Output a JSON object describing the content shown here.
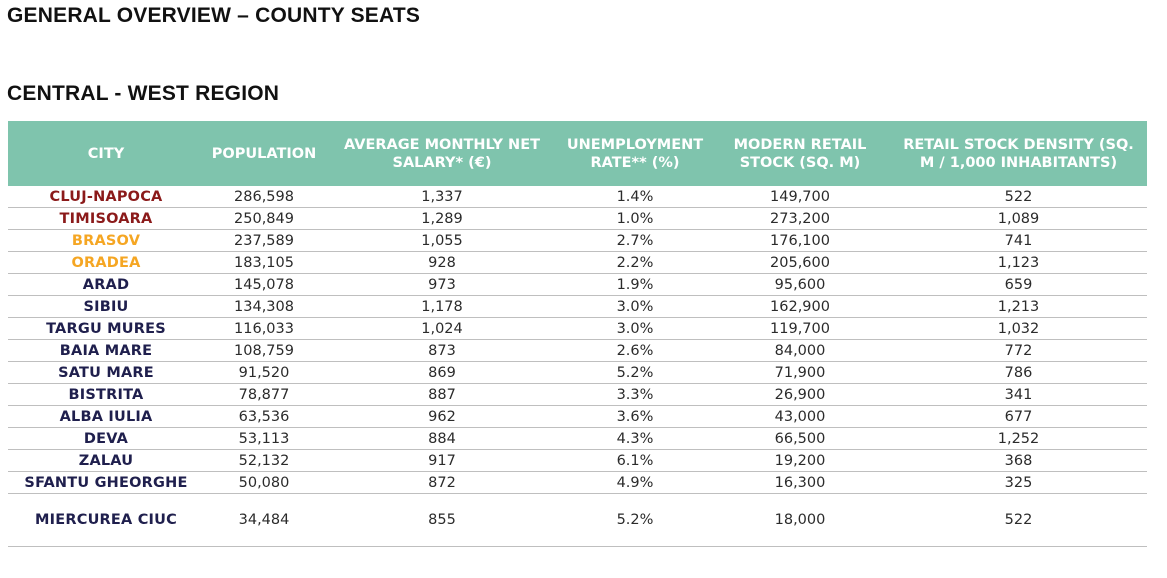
{
  "header": {
    "title": "GENERAL OVERVIEW – COUNTY SEATS",
    "region": "CENTRAL - WEST REGION"
  },
  "table": {
    "columns": [
      "CITY",
      "POPULATION",
      "AVERAGE MONTHLY NET SALARY* (€)",
      "UNEMPLOYMENT RATE** (%)",
      "MODERN RETAIL STOCK (SQ. M)",
      "RETAIL STOCK DENSITY (SQ. M / 1,000 INHABITANTS)"
    ],
    "rows": [
      {
        "city": "CLUJ-NAPOCA",
        "color": "#8b1a1a",
        "population": "286,598",
        "salary": "1,337",
        "unemployment": "1.4%",
        "retail_stock": "149,700",
        "density": "522"
      },
      {
        "city": "TIMISOARA",
        "color": "#8b1a1a",
        "population": "250,849",
        "salary": "1,289",
        "unemployment": "1.0%",
        "retail_stock": "273,200",
        "density": "1,089"
      },
      {
        "city": "BRASOV",
        "color": "#f5a623",
        "population": "237,589",
        "salary": "1,055",
        "unemployment": "2.7%",
        "retail_stock": "176,100",
        "density": "741"
      },
      {
        "city": "ORADEA",
        "color": "#f5a623",
        "population": "183,105",
        "salary": "928",
        "unemployment": "2.2%",
        "retail_stock": "205,600",
        "density": "1,123"
      },
      {
        "city": "ARAD",
        "color": "#1f1f4d",
        "population": "145,078",
        "salary": "973",
        "unemployment": "1.9%",
        "retail_stock": "95,600",
        "density": "659"
      },
      {
        "city": "SIBIU",
        "color": "#1f1f4d",
        "population": "134,308",
        "salary": "1,178",
        "unemployment": "3.0%",
        "retail_stock": "162,900",
        "density": "1,213"
      },
      {
        "city": "TARGU MURES",
        "color": "#1f1f4d",
        "population": "116,033",
        "salary": "1,024",
        "unemployment": "3.0%",
        "retail_stock": "119,700",
        "density": "1,032"
      },
      {
        "city": "BAIA MARE",
        "color": "#1f1f4d",
        "population": "108,759",
        "salary": "873",
        "unemployment": "2.6%",
        "retail_stock": "84,000",
        "density": "772"
      },
      {
        "city": "SATU MARE",
        "color": "#1f1f4d",
        "population": "91,520",
        "salary": "869",
        "unemployment": "5.2%",
        "retail_stock": "71,900",
        "density": "786"
      },
      {
        "city": "BISTRITA",
        "color": "#1f1f4d",
        "population": "78,877",
        "salary": "887",
        "unemployment": "3.3%",
        "retail_stock": "26,900",
        "density": "341"
      },
      {
        "city": "ALBA IULIA",
        "color": "#1f1f4d",
        "population": "63,536",
        "salary": "962",
        "unemployment": "3.6%",
        "retail_stock": "43,000",
        "density": "677"
      },
      {
        "city": "DEVA",
        "color": "#1f1f4d",
        "population": "53,113",
        "salary": "884",
        "unemployment": "4.3%",
        "retail_stock": "66,500",
        "density": "1,252"
      },
      {
        "city": "ZALAU",
        "color": "#1f1f4d",
        "population": "52,132",
        "salary": "917",
        "unemployment": "6.1%",
        "retail_stock": "19,200",
        "density": "368"
      },
      {
        "city": "SFANTU GHEORGHE",
        "color": "#1f1f4d",
        "population": "50,080",
        "salary": "872",
        "unemployment": "4.9%",
        "retail_stock": "16,300",
        "density": "325"
      },
      {
        "city": "MIERCUREA CIUC",
        "color": "#1f1f4d",
        "population": "34,484",
        "salary": "855",
        "unemployment": "5.2%",
        "retail_stock": "18,000",
        "density": "522"
      }
    ]
  },
  "colors": {
    "header_bg": "#7fc4ad",
    "highlight_red": "#8b1a1a",
    "highlight_orange": "#f5a623",
    "city_default": "#1f1f4d"
  }
}
